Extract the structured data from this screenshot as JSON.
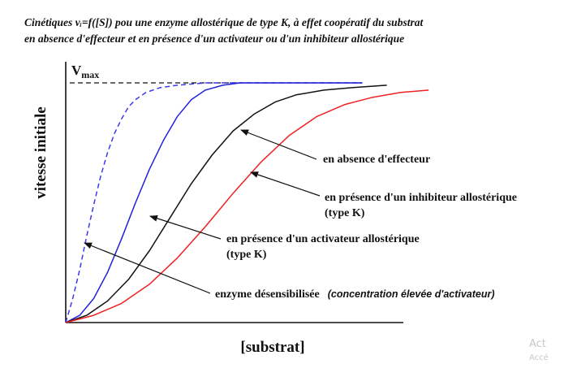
{
  "chart_data": {
    "type": "line",
    "title_lines": [
      "Cinétiques vᵢ=f([S]) pou une enzyme allostérique  de type K, à effet coopératif du substrat",
      "en absence d'effecteur et en présence d'un activateur ou d'un inhibiteur allostérique"
    ],
    "ylabel": "vitesse initiale",
    "xlabel": "[substrat]",
    "vmax_label": {
      "main": "V",
      "sub": "max"
    },
    "vmax_value": 1.0,
    "series": [
      {
        "name": "enzyme désensibilisée",
        "color": "#3a3af0",
        "dashed": true,
        "x": [
          0,
          0.02,
          0.04,
          0.06,
          0.08,
          0.1,
          0.12,
          0.14,
          0.16,
          0.18,
          0.2,
          0.23,
          0.27,
          0.32,
          0.4,
          0.5,
          0.65,
          0.85
        ],
        "y": [
          0,
          0.1,
          0.22,
          0.36,
          0.49,
          0.61,
          0.71,
          0.79,
          0.85,
          0.9,
          0.93,
          0.96,
          0.98,
          0.99,
          1.0,
          1.0,
          1.0,
          1.0
        ]
      },
      {
        "name": "en présence d'un activateur allostérique (type K)",
        "color": "#2222dd",
        "dashed": false,
        "x": [
          0,
          0.04,
          0.08,
          0.12,
          0.16,
          0.2,
          0.24,
          0.28,
          0.32,
          0.36,
          0.4,
          0.45,
          0.5,
          0.6,
          0.7,
          0.85
        ],
        "y": [
          0,
          0.03,
          0.1,
          0.21,
          0.35,
          0.5,
          0.64,
          0.76,
          0.86,
          0.93,
          0.97,
          0.99,
          1.0,
          1.0,
          1.0,
          1.0
        ]
      },
      {
        "name": "en absence d'effecteur",
        "color": "#111111",
        "dashed": false,
        "x": [
          0,
          0.06,
          0.12,
          0.18,
          0.24,
          0.3,
          0.36,
          0.42,
          0.48,
          0.54,
          0.6,
          0.66,
          0.74,
          0.82,
          0.92
        ],
        "y": [
          0,
          0.03,
          0.09,
          0.18,
          0.3,
          0.44,
          0.58,
          0.7,
          0.8,
          0.87,
          0.92,
          0.95,
          0.97,
          0.98,
          0.99
        ]
      },
      {
        "name": "en présence d'un inhibiteur allostérique (type K)",
        "color": "#ee2222",
        "dashed": false,
        "x": [
          0,
          0.08,
          0.16,
          0.24,
          0.32,
          0.4,
          0.48,
          0.56,
          0.64,
          0.72,
          0.8,
          0.88,
          0.96,
          1.04
        ],
        "y": [
          0,
          0.03,
          0.08,
          0.16,
          0.27,
          0.4,
          0.54,
          0.67,
          0.78,
          0.86,
          0.91,
          0.94,
          0.96,
          0.97
        ]
      }
    ],
    "annotations": [
      {
        "text": "en absence d'effecteur",
        "target_series": 2
      },
      {
        "text": "en présence d'un inhibiteur allostérique",
        "text2": "(type K)",
        "target_series": 3
      },
      {
        "text": "en présence d'un activateur allostérique",
        "text2": "(type K)",
        "target_series": 1
      },
      {
        "text": "enzyme désensibilisée",
        "text_italic": "(concentration élevée d'activateur)",
        "target_series": 0
      }
    ],
    "grid": false,
    "legend": "none"
  },
  "watermark": {
    "line1": "Act",
    "line2": "Accé"
  }
}
